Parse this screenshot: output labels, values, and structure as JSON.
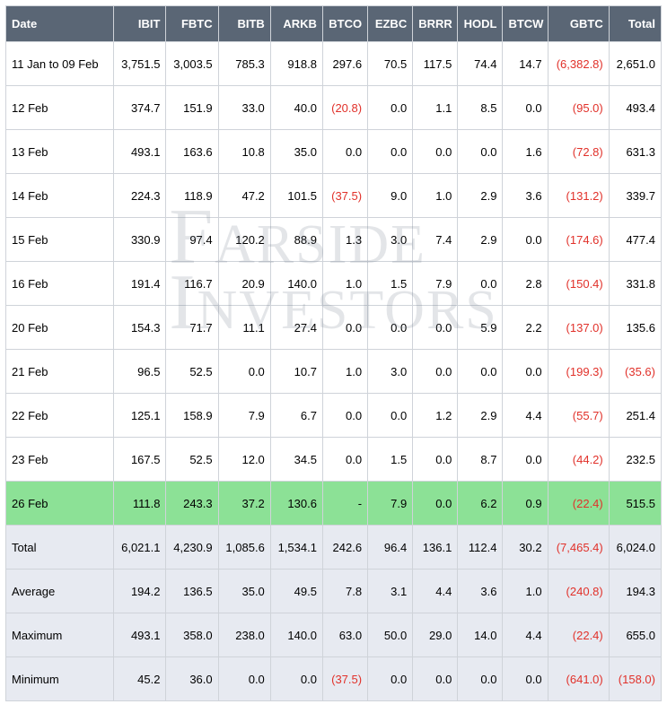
{
  "watermark": {
    "line1": "Farside",
    "line2": "Investors"
  },
  "columns": [
    "Date",
    "IBIT",
    "FBTC",
    "BITB",
    "ARKB",
    "BTCO",
    "EZBC",
    "BRRR",
    "HODL",
    "BTCW",
    "GBTC",
    "Total"
  ],
  "colClasses": [
    "c-date",
    "c-wide",
    "c-wide",
    "c-wide",
    "c-wide",
    "c-num",
    "c-num",
    "c-num",
    "c-num",
    "c-num",
    "c-gbtc",
    "c-total"
  ],
  "rows": [
    {
      "date": "11 Jan to 09 Feb",
      "v": [
        "3,751.5",
        "3,003.5",
        "785.3",
        "918.8",
        "297.6",
        "70.5",
        "117.5",
        "74.4",
        "14.7",
        "(6,382.8)",
        "2,651.0"
      ]
    },
    {
      "date": "12 Feb",
      "v": [
        "374.7",
        "151.9",
        "33.0",
        "40.0",
        "(20.8)",
        "0.0",
        "1.1",
        "8.5",
        "0.0",
        "(95.0)",
        "493.4"
      ]
    },
    {
      "date": "13 Feb",
      "v": [
        "493.1",
        "163.6",
        "10.8",
        "35.0",
        "0.0",
        "0.0",
        "0.0",
        "0.0",
        "1.6",
        "(72.8)",
        "631.3"
      ]
    },
    {
      "date": "14 Feb",
      "v": [
        "224.3",
        "118.9",
        "47.2",
        "101.5",
        "(37.5)",
        "9.0",
        "1.0",
        "2.9",
        "3.6",
        "(131.2)",
        "339.7"
      ]
    },
    {
      "date": "15 Feb",
      "v": [
        "330.9",
        "97.4",
        "120.2",
        "88.9",
        "1.3",
        "3.0",
        "7.4",
        "2.9",
        "0.0",
        "(174.6)",
        "477.4"
      ]
    },
    {
      "date": "16 Feb",
      "v": [
        "191.4",
        "116.7",
        "20.9",
        "140.0",
        "1.0",
        "1.5",
        "7.9",
        "0.0",
        "2.8",
        "(150.4)",
        "331.8"
      ]
    },
    {
      "date": "20 Feb",
      "v": [
        "154.3",
        "71.7",
        "11.1",
        "27.4",
        "0.0",
        "0.0",
        "0.0",
        "5.9",
        "2.2",
        "(137.0)",
        "135.6"
      ]
    },
    {
      "date": "21 Feb",
      "v": [
        "96.5",
        "52.5",
        "0.0",
        "10.7",
        "1.0",
        "3.0",
        "0.0",
        "0.0",
        "0.0",
        "(199.3)",
        "(35.6)"
      ]
    },
    {
      "date": "22 Feb",
      "v": [
        "125.1",
        "158.9",
        "7.9",
        "6.7",
        "0.0",
        "0.0",
        "1.2",
        "2.9",
        "4.4",
        "(55.7)",
        "251.4"
      ]
    },
    {
      "date": "23 Feb",
      "v": [
        "167.5",
        "52.5",
        "12.0",
        "34.5",
        "0.0",
        "1.5",
        "0.0",
        "8.7",
        "0.0",
        "(44.2)",
        "232.5"
      ]
    },
    {
      "date": "26 Feb",
      "hl": true,
      "v": [
        "111.8",
        "243.3",
        "37.2",
        "130.6",
        "-",
        "7.9",
        "0.0",
        "6.2",
        "0.9",
        "(22.4)",
        "515.5"
      ]
    },
    {
      "date": "Total",
      "summary": true,
      "v": [
        "6,021.1",
        "4,230.9",
        "1,085.6",
        "1,534.1",
        "242.6",
        "96.4",
        "136.1",
        "112.4",
        "30.2",
        "(7,465.4)",
        "6,024.0"
      ]
    },
    {
      "date": "Average",
      "summary": true,
      "v": [
        "194.2",
        "136.5",
        "35.0",
        "49.5",
        "7.8",
        "3.1",
        "4.4",
        "3.6",
        "1.0",
        "(240.8)",
        "194.3"
      ]
    },
    {
      "date": "Maximum",
      "summary": true,
      "v": [
        "493.1",
        "358.0",
        "238.0",
        "140.0",
        "63.0",
        "50.0",
        "29.0",
        "14.0",
        "4.4",
        "(22.4)",
        "655.0"
      ]
    },
    {
      "date": "Minimum",
      "summary": true,
      "v": [
        "45.2",
        "36.0",
        "0.0",
        "0.0",
        "(37.5)",
        "0.0",
        "0.0",
        "0.0",
        "0.0",
        "(641.0)",
        "(158.0)"
      ]
    }
  ]
}
